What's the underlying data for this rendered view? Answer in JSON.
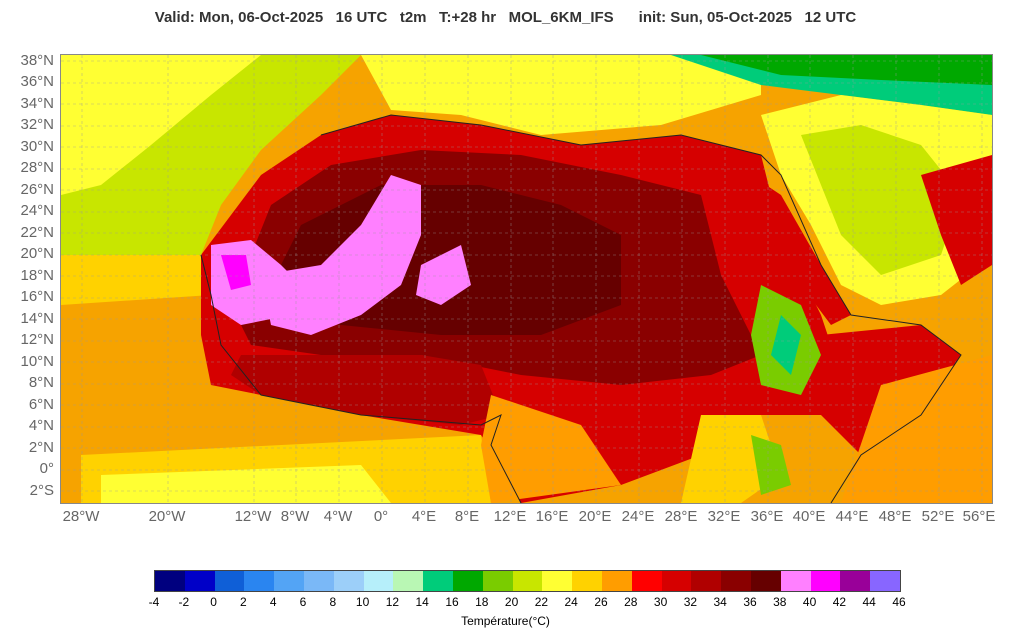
{
  "header": {
    "title": "Valid: Mon, 06-Oct-2025   16 UTC   t2m   T:+28 hr   MOL_6KM_IFS      init: Sun, 05-Oct-2025   12 UTC"
  },
  "map": {
    "lat_labels": [
      "38°N",
      "36°N",
      "34°N",
      "32°N",
      "30°N",
      "28°N",
      "26°N",
      "24°N",
      "22°N",
      "20°N",
      "18°N",
      "16°N",
      "14°N",
      "12°N",
      "10°N",
      "8°N",
      "6°N",
      "4°N",
      "2°N",
      "0°",
      "2°S"
    ],
    "lon_labels": [
      "28°W",
      "20°W",
      "12°W",
      "8°W",
      "4°W",
      "0°",
      "4°E",
      "8°E",
      "12°E",
      "16°E",
      "20°E",
      "24°E",
      "28°E",
      "32°E",
      "36°E",
      "40°E",
      "44°E",
      "48°E",
      "52°E",
      "56°E"
    ]
  },
  "colorbar": {
    "ticks": [
      "-4",
      "-2",
      "0",
      "2",
      "4",
      "6",
      "8",
      "10",
      "12",
      "14",
      "16",
      "18",
      "20",
      "22",
      "24",
      "26",
      "28",
      "30",
      "32",
      "34",
      "36",
      "38",
      "40",
      "42",
      "44",
      "46"
    ],
    "colors": [
      "#00007f",
      "#0000c8",
      "#0f5fd7",
      "#2a85f0",
      "#53a4f5",
      "#7ab8f7",
      "#9ccff9",
      "#b6effa",
      "#b9f7b4",
      "#00cc7a",
      "#00a800",
      "#7acc00",
      "#c8e600",
      "#ffff33",
      "#ffd200",
      "#ff9d00",
      "#ff0000",
      "#d60000",
      "#b00000",
      "#8a0000",
      "#660000",
      "#ff80ff",
      "#ff00ff",
      "#990099",
      "#8866ff"
    ],
    "label": "Température(°C)"
  }
}
